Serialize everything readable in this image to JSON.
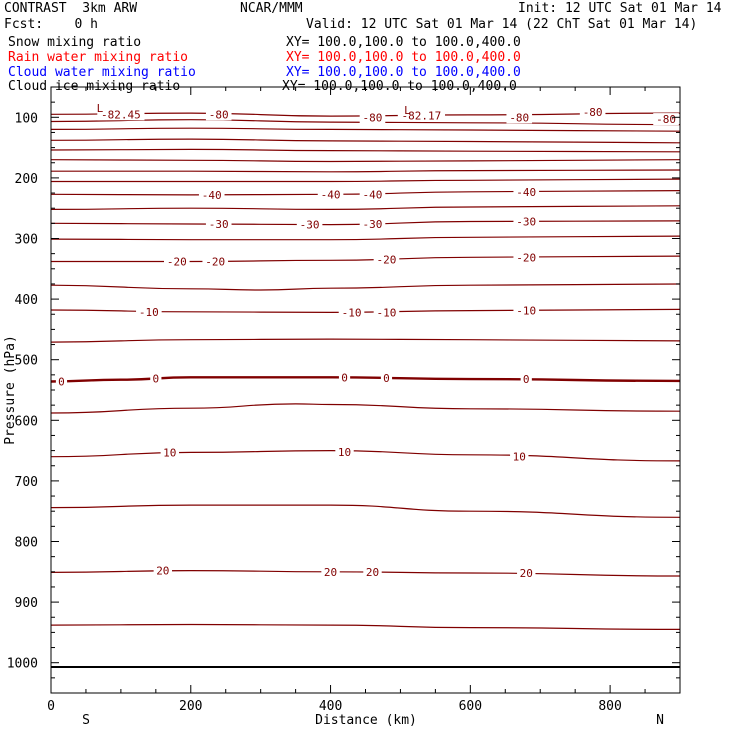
{
  "header": {
    "title": "CONTRAST  3km ARW",
    "center": "NCAR/MMM",
    "init": "Init: 12 UTC Sat 01 Mar 14",
    "fcst": "Fcst:    0 h",
    "valid": "Valid: 12 UTC Sat 01 Mar 14 (22 ChT Sat 01 Mar 14)"
  },
  "legend": [
    {
      "name": "Snow mixing ratio",
      "xy": "XY= 100.0,100.0 to 100.0,400.0",
      "color": "#000000"
    },
    {
      "name": "Rain water mixing ratio",
      "xy": "XY= 100.0,100.0 to 100.0,400.0",
      "color": "#ff0000"
    },
    {
      "name": "Cloud water mixing ratio",
      "xy": "XY= 100.0,100.0 to 100.0,400.0",
      "color": "#0000ff"
    },
    {
      "name": "Cloud ice mixing ratio",
      "xy": "XY= 100.0,100.0 to 100.0,400.0",
      "color": "#000000"
    }
  ],
  "chart_data": {
    "type": "line",
    "xlabel": "Distance (km)",
    "ylabel": "Pressure (hPa)",
    "xlim": [
      0,
      900
    ],
    "ylim": [
      1050,
      50
    ],
    "xticks": [
      0,
      200,
      400,
      600,
      800
    ],
    "yticks": [
      100,
      200,
      300,
      400,
      500,
      600,
      700,
      800,
      900,
      1000
    ],
    "end_labels": {
      "left": "S",
      "right": "N"
    },
    "contour_color": "#800000",
    "surface_pressure": 1007,
    "series": [
      {
        "level": -80,
        "x": [
          0,
          200,
          400,
          600,
          900
        ],
        "y": [
          95,
          93,
          98,
          96,
          93
        ]
      },
      {
        "level": -75,
        "x": [
          0,
          200,
          400,
          600,
          900
        ],
        "y": [
          107,
          104,
          108,
          109,
          112
        ]
      },
      {
        "level": -70,
        "x": [
          0,
          200,
          400,
          600,
          900
        ],
        "y": [
          120,
          118,
          120,
          121,
          123
        ]
      },
      {
        "level": -65,
        "x": [
          0,
          200,
          400,
          600,
          900
        ],
        "y": [
          138,
          136,
          139,
          140,
          142
        ]
      },
      {
        "level": -60,
        "x": [
          0,
          200,
          400,
          600,
          900
        ],
        "y": [
          154,
          153,
          155,
          156,
          157
        ]
      },
      {
        "level": -55,
        "x": [
          0,
          200,
          400,
          600,
          900
        ],
        "y": [
          170,
          171,
          173,
          172,
          170
        ]
      },
      {
        "level": -50,
        "x": [
          0,
          200,
          400,
          600,
          900
        ],
        "y": [
          189,
          189,
          190,
          188,
          187
        ]
      },
      {
        "level": -45,
        "x": [
          0,
          200,
          400,
          600,
          900
        ],
        "y": [
          206,
          206,
          206,
          204,
          202
        ]
      },
      {
        "level": -40,
        "x": [
          0,
          200,
          400,
          600,
          900
        ],
        "y": [
          227,
          228,
          227,
          223,
          221
        ]
      },
      {
        "level": -35,
        "x": [
          0,
          200,
          400,
          600,
          900
        ],
        "y": [
          252,
          250,
          252,
          248,
          246
        ]
      },
      {
        "level": -30,
        "x": [
          0,
          200,
          400,
          600,
          900
        ],
        "y": [
          275,
          276,
          277,
          272,
          271
        ]
      },
      {
        "level": -25,
        "x": [
          0,
          200,
          400,
          600,
          900
        ],
        "y": [
          301,
          302,
          302,
          298,
          296
        ]
      },
      {
        "level": -20,
        "x": [
          0,
          200,
          400,
          600,
          900
        ],
        "y": [
          338,
          338,
          336,
          331,
          329
        ]
      },
      {
        "level": -15,
        "x": [
          0,
          200,
          300,
          400,
          600,
          900
        ],
        "y": [
          377,
          383,
          385,
          382,
          377,
          375
        ]
      },
      {
        "level": -10,
        "x": [
          0,
          200,
          400,
          600,
          900
        ],
        "y": [
          418,
          421,
          422,
          419,
          417
        ]
      },
      {
        "level": -5,
        "x": [
          0,
          200,
          400,
          600,
          900
        ],
        "y": [
          471,
          467,
          466,
          467,
          469
        ]
      },
      {
        "level": 0,
        "x": [
          0,
          100,
          200,
          400,
          600,
          900
        ],
        "y": [
          536,
          533,
          529,
          529,
          532,
          535
        ]
      },
      {
        "level": 5,
        "x": [
          0,
          200,
          350,
          400,
          600,
          900
        ],
        "y": [
          588,
          580,
          573,
          574,
          581,
          585
        ]
      },
      {
        "level": 10,
        "x": [
          0,
          200,
          400,
          600,
          900
        ],
        "y": [
          660,
          653,
          650,
          657,
          667
        ]
      },
      {
        "level": 15,
        "x": [
          0,
          200,
          400,
          600,
          900
        ],
        "y": [
          744,
          740,
          740,
          750,
          760
        ]
      },
      {
        "level": 20,
        "x": [
          0,
          200,
          400,
          600,
          900
        ],
        "y": [
          851,
          848,
          850,
          852,
          857
        ]
      },
      {
        "level": 25,
        "x": [
          0,
          200,
          400,
          600,
          900
        ],
        "y": [
          938,
          937,
          938,
          942,
          945
        ]
      }
    ],
    "labels": [
      {
        "text": "-82.45",
        "x": 100,
        "y": 95
      },
      {
        "text": "-80",
        "x": 240,
        "y": 95
      },
      {
        "text": "-80",
        "x": 460,
        "y": 100
      },
      {
        "text": "-82.17",
        "x": 530,
        "y": 97
      },
      {
        "text": "-80",
        "x": 775,
        "y": 91
      },
      {
        "text": "-80",
        "x": 670,
        "y": 100
      },
      {
        "text": "-80",
        "x": 880,
        "y": 103
      },
      {
        "text": "-40",
        "x": 230,
        "y": 228
      },
      {
        "text": "-40",
        "x": 400,
        "y": 227
      },
      {
        "text": "-40",
        "x": 460,
        "y": 227
      },
      {
        "text": "-40",
        "x": 680,
        "y": 223
      },
      {
        "text": "-30",
        "x": 240,
        "y": 276
      },
      {
        "text": "-30",
        "x": 370,
        "y": 277
      },
      {
        "text": "-30",
        "x": 460,
        "y": 276
      },
      {
        "text": "-30",
        "x": 680,
        "y": 272
      },
      {
        "text": "-20",
        "x": 180,
        "y": 338
      },
      {
        "text": "-20",
        "x": 235,
        "y": 338
      },
      {
        "text": "-20",
        "x": 480,
        "y": 335
      },
      {
        "text": "-20",
        "x": 680,
        "y": 331
      },
      {
        "text": "-10",
        "x": 140,
        "y": 421
      },
      {
        "text": "-10",
        "x": 430,
        "y": 422
      },
      {
        "text": "-10",
        "x": 480,
        "y": 422
      },
      {
        "text": "-10",
        "x": 680,
        "y": 419
      },
      {
        "text": "0",
        "x": 15,
        "y": 536
      },
      {
        "text": "0",
        "x": 150,
        "y": 531
      },
      {
        "text": "0",
        "x": 420,
        "y": 529
      },
      {
        "text": "0",
        "x": 480,
        "y": 530
      },
      {
        "text": "0",
        "x": 680,
        "y": 532
      },
      {
        "text": "10",
        "x": 170,
        "y": 653
      },
      {
        "text": "10",
        "x": 420,
        "y": 652
      },
      {
        "text": "10",
        "x": 670,
        "y": 660
      },
      {
        "text": "20",
        "x": 160,
        "y": 848
      },
      {
        "text": "20",
        "x": 400,
        "y": 850
      },
      {
        "text": "20",
        "x": 460,
        "y": 850
      },
      {
        "text": "20",
        "x": 680,
        "y": 852
      }
    ],
    "markers": [
      {
        "text": "L",
        "x": 70,
        "y": 85
      },
      {
        "text": "L",
        "x": 510,
        "y": 88
      }
    ]
  }
}
